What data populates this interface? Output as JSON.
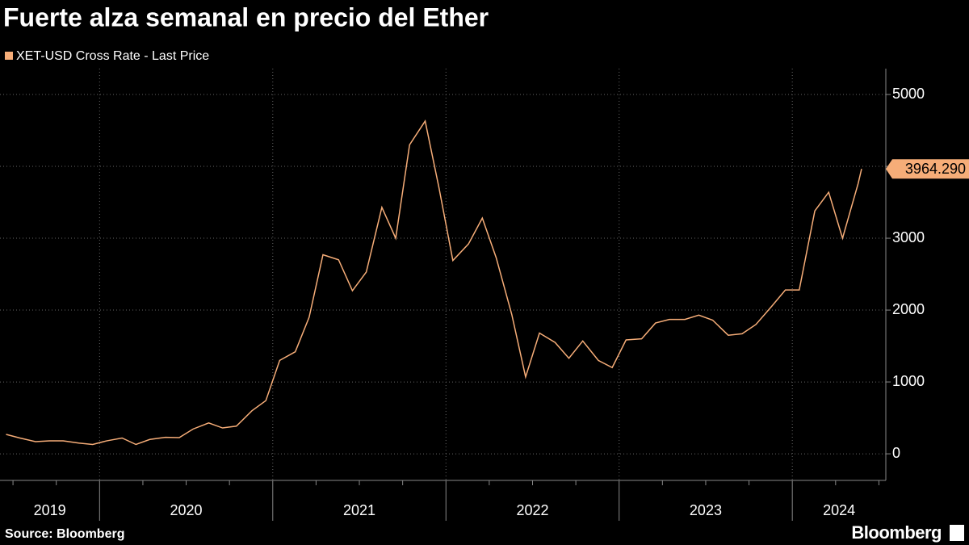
{
  "chart_data": {
    "type": "line",
    "title": "Fuerte alza semanal en precio del Ether",
    "source": "Source: Bloomberg",
    "brand": "Bloomberg",
    "series": [
      {
        "name": "XET-USD Cross Rate - Last Price",
        "color": "#f6ad78",
        "x": [
          2019.46,
          2019.54,
          2019.63,
          2019.71,
          2019.79,
          2019.88,
          2019.96,
          2020.04,
          2020.13,
          2020.21,
          2020.29,
          2020.38,
          2020.46,
          2020.54,
          2020.63,
          2020.71,
          2020.79,
          2020.88,
          2020.96,
          2021.04,
          2021.13,
          2021.21,
          2021.29,
          2021.38,
          2021.46,
          2021.54,
          2021.63,
          2021.71,
          2021.79,
          2021.88,
          2021.96,
          2022.04,
          2022.13,
          2022.21,
          2022.29,
          2022.38,
          2022.46,
          2022.54,
          2022.63,
          2022.71,
          2022.79,
          2022.88,
          2022.96,
          2023.04,
          2023.13,
          2023.21,
          2023.29,
          2023.38,
          2023.46,
          2023.54,
          2023.63,
          2023.71,
          2023.79,
          2023.88,
          2023.96,
          2024.04,
          2024.13,
          2024.21,
          2024.29,
          2024.38,
          2024.4
        ],
        "values": [
          270,
          220,
          170,
          180,
          180,
          150,
          130,
          180,
          220,
          130,
          200,
          230,
          225,
          345,
          430,
          360,
          385,
          600,
          740,
          1300,
          1420,
          1900,
          2770,
          2700,
          2270,
          2530,
          3430,
          3000,
          4300,
          4630,
          3700,
          2690,
          2920,
          3280,
          2730,
          1940,
          1070,
          1680,
          1550,
          1330,
          1570,
          1300,
          1200,
          1585,
          1600,
          1820,
          1870,
          1870,
          1930,
          1860,
          1650,
          1670,
          1800,
          2050,
          2280,
          2280,
          3380,
          3640,
          3000,
          3760,
          3964.29
        ]
      }
    ],
    "last_label": "3964.290",
    "xlim": [
      2019.425,
      2024.54
    ],
    "xticks": [
      2020,
      2021,
      2022,
      2023,
      2024
    ],
    "years": [
      {
        "value": 2019,
        "label": "2019"
      },
      {
        "value": 2020,
        "label": "2020"
      },
      {
        "value": 2021,
        "label": "2021"
      },
      {
        "value": 2022,
        "label": "2022"
      },
      {
        "value": 2023,
        "label": "2023"
      },
      {
        "value": 2024,
        "label": "2024"
      }
    ],
    "ylim": [
      -370,
      5360
    ],
    "yticks": [
      0,
      1000,
      2000,
      3000,
      4000,
      5000
    ],
    "grid": true
  }
}
